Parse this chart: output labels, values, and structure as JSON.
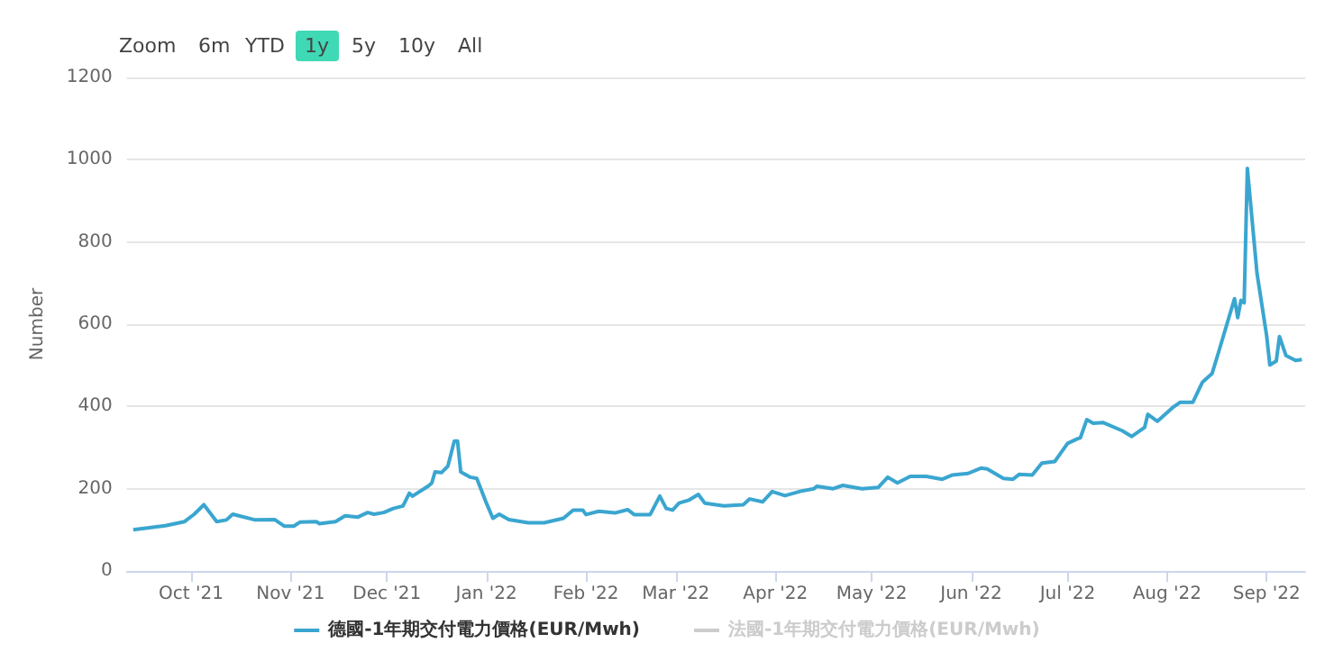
{
  "chart_data": {
    "type": "line",
    "ylabel": "Number",
    "annotations": [
      "Zoom",
      "6m",
      "YTD",
      "1y",
      "5y",
      "10y",
      "All"
    ],
    "x": [
      "2021-09-13",
      "2021-09-23",
      "2021-09-29",
      "2021-10-02",
      "2021-10-05",
      "2021-10-09",
      "2021-10-12",
      "2021-10-14",
      "2021-10-21",
      "2021-10-27",
      "2021-10-30",
      "2021-11-02",
      "2021-11-04",
      "2021-11-09",
      "2021-11-10",
      "2021-11-15",
      "2021-11-18",
      "2021-11-22",
      "2021-11-25",
      "2021-11-27",
      "2021-11-30",
      "2021-12-03",
      "2021-12-06",
      "2021-12-08",
      "2021-12-09",
      "2021-12-14",
      "2021-12-15",
      "2021-12-16",
      "2021-12-18",
      "2021-12-20",
      "2021-12-22",
      "2021-12-23",
      "2021-12-24",
      "2021-12-27",
      "2021-12-29",
      "2022-01-01",
      "2022-01-03",
      "2022-01-05",
      "2022-01-08",
      "2022-01-14",
      "2022-01-19",
      "2022-01-25",
      "2022-01-28",
      "2022-01-31",
      "2022-02-01",
      "2022-02-05",
      "2022-02-10",
      "2022-02-14",
      "2022-02-16",
      "2022-02-21",
      "2022-02-24",
      "2022-02-26",
      "2022-02-28",
      "2022-03-02",
      "2022-03-05",
      "2022-03-08",
      "2022-03-10",
      "2022-03-16",
      "2022-03-22",
      "2022-03-24",
      "2022-03-28",
      "2022-03-31",
      "2022-04-04",
      "2022-04-09",
      "2022-04-13",
      "2022-04-14",
      "2022-04-19",
      "2022-04-22",
      "2022-04-28",
      "2022-05-03",
      "2022-05-06",
      "2022-05-09",
      "2022-05-13",
      "2022-05-18",
      "2022-05-23",
      "2022-05-26",
      "2022-05-31",
      "2022-06-04",
      "2022-06-06",
      "2022-06-11",
      "2022-06-14",
      "2022-06-16",
      "2022-06-20",
      "2022-06-23",
      "2022-06-27",
      "2022-07-01",
      "2022-07-04",
      "2022-07-05",
      "2022-07-07",
      "2022-07-09",
      "2022-07-12",
      "2022-07-18",
      "2022-07-21",
      "2022-07-25",
      "2022-07-26",
      "2022-07-29",
      "2022-08-03",
      "2022-08-05",
      "2022-08-09",
      "2022-08-12",
      "2022-08-15",
      "2022-08-17",
      "2022-08-22",
      "2022-08-23",
      "2022-08-24",
      "2022-08-25",
      "2022-08-26",
      "2022-08-29",
      "2022-09-01",
      "2022-09-02",
      "2022-09-04",
      "2022-09-05",
      "2022-09-07",
      "2022-09-10",
      "2022-09-12"
    ],
    "series": [
      {
        "name": "德國-1年期交付電力價格(EUR/Mwh)",
        "color": "#3aa6d0",
        "values": [
          100,
          110,
          120,
          138,
          161,
          120,
          124,
          138,
          124,
          125,
          109,
          109,
          119,
          120,
          115,
          120,
          134,
          131,
          142,
          138,
          142,
          152,
          158,
          189,
          182,
          207,
          214,
          241,
          239,
          255,
          316,
          316,
          241,
          228,
          225,
          165,
          128,
          138,
          125,
          117,
          117,
          128,
          148,
          148,
          137,
          145,
          141,
          149,
          137,
          137,
          182,
          152,
          148,
          165,
          172,
          186,
          165,
          158,
          161,
          175,
          168,
          193,
          183,
          194,
          200,
          206,
          200,
          208,
          200,
          203,
          228,
          214,
          230,
          230,
          223,
          233,
          237,
          250,
          248,
          225,
          223,
          235,
          233,
          262,
          266,
          310,
          321,
          324,
          368,
          359,
          361,
          341,
          327,
          349,
          381,
          364,
          399,
          410,
          410,
          459,
          480,
          531,
          662,
          616,
          658,
          652,
          979,
          724,
          572,
          501,
          510,
          570,
          524,
          512,
          514
        ]
      },
      {
        "name": "法國-1年期交付電力價格(EUR/Mwh)",
        "color": "#cccccc",
        "values": [
          null,
          null,
          null,
          null,
          null,
          null,
          null,
          null,
          null,
          null,
          null,
          null,
          null,
          null,
          null,
          null,
          null,
          null,
          null,
          null,
          null,
          null,
          null,
          null,
          null,
          null,
          null,
          null,
          null,
          null,
          null,
          null,
          null,
          null,
          null,
          null,
          null,
          null,
          null,
          null,
          null,
          null,
          null,
          null,
          null,
          null,
          null,
          null,
          null,
          null,
          null,
          null,
          null,
          null,
          null,
          null,
          null,
          null,
          null,
          null,
          null,
          null,
          null,
          null,
          null,
          null,
          null,
          null,
          null,
          null,
          null,
          null,
          null,
          null,
          null,
          null,
          null,
          null,
          null,
          null,
          null,
          null,
          null,
          null,
          null,
          null,
          null,
          null,
          null,
          null,
          null,
          null,
          null,
          null,
          null,
          null,
          null,
          null,
          null,
          null,
          null,
          null,
          null,
          null,
          null,
          null,
          null,
          null,
          null,
          null,
          null,
          null,
          null,
          null,
          null
        ]
      }
    ],
    "xlim": [
      "2021-09-11",
      "2022-09-13"
    ],
    "xticks": [
      {
        "value": "2021-10-01",
        "label": "Oct '21"
      },
      {
        "value": "2021-11-01",
        "label": "Nov '21"
      },
      {
        "value": "2021-12-01",
        "label": "Dec '21"
      },
      {
        "value": "2022-01-01",
        "label": "Jan '22"
      },
      {
        "value": "2022-02-01",
        "label": "Feb '22"
      },
      {
        "value": "2022-03-01",
        "label": "Mar '22"
      },
      {
        "value": "2022-04-01",
        "label": "Apr '22"
      },
      {
        "value": "2022-05-01",
        "label": "May '22"
      },
      {
        "value": "2022-06-01",
        "label": "Jun '22"
      },
      {
        "value": "2022-07-01",
        "label": "Jul '22"
      },
      {
        "value": "2022-08-01",
        "label": "Aug '22"
      },
      {
        "value": "2022-09-01",
        "label": "Sep '22"
      }
    ],
    "ylim": [
      0,
      1200
    ],
    "yticks": [
      0,
      200,
      400,
      600,
      800,
      1000,
      1200
    ],
    "grid": "y",
    "legend": "bottom",
    "marker": "none",
    "line_style": "solid"
  }
}
